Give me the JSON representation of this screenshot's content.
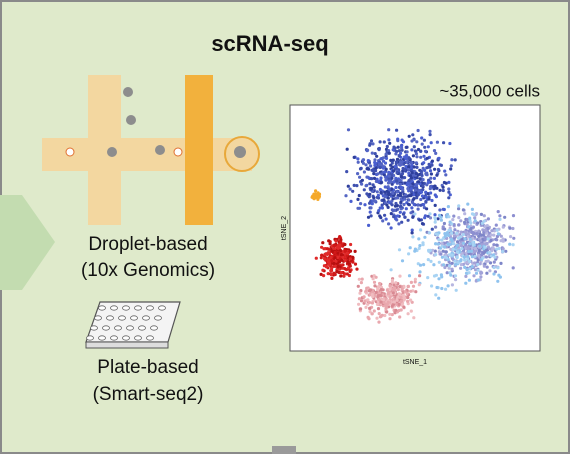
{
  "title": "scRNA-seq",
  "cell_count_label": "~35,000 cells",
  "methods": [
    {
      "name": "Droplet-based",
      "detail": "(10x Genomics)"
    },
    {
      "name": "Plate-based",
      "detail": "(Smart-seq2)"
    }
  ],
  "plot": {
    "x_label": "tSNE_1",
    "y_label": "tSNE_2"
  }
}
